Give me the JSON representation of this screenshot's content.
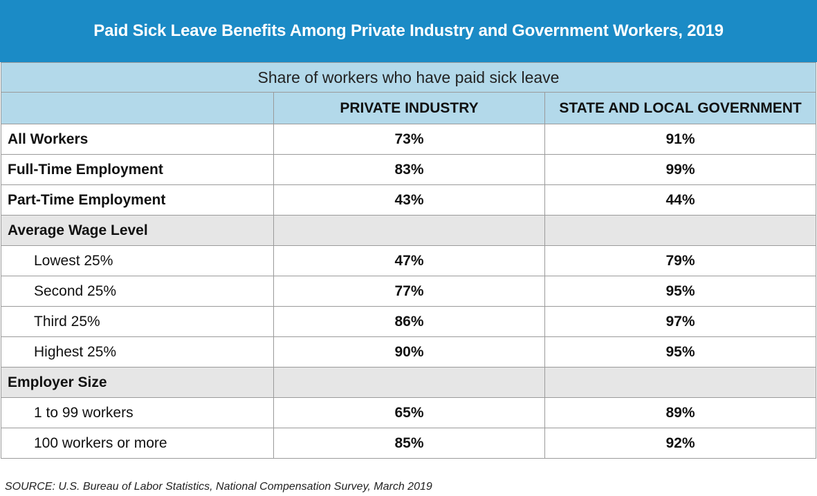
{
  "chart_data": {
    "type": "table",
    "title": "Paid Sick Leave Benefits Among Private Industry and Government Workers, 2019",
    "subtitle": "Share of workers who have paid sick leave",
    "columns": [
      "PRIVATE INDUSTRY",
      "STATE AND LOCAL GOVERNMENT"
    ],
    "rows": [
      {
        "label": "All Workers",
        "kind": "main",
        "values": [
          "73%",
          "91%"
        ]
      },
      {
        "label": "Full-Time Employment",
        "kind": "main",
        "values": [
          "83%",
          "99%"
        ]
      },
      {
        "label": "Part-Time Employment",
        "kind": "main",
        "values": [
          "43%",
          "44%"
        ]
      },
      {
        "label": "Average Wage Level",
        "kind": "section",
        "values": [
          "",
          ""
        ]
      },
      {
        "label": "Lowest 25%",
        "kind": "sub",
        "values": [
          "47%",
          "79%"
        ]
      },
      {
        "label": "Second 25%",
        "kind": "sub",
        "values": [
          "77%",
          "95%"
        ]
      },
      {
        "label": "Third 25%",
        "kind": "sub",
        "values": [
          "86%",
          "97%"
        ]
      },
      {
        "label": "Highest 25%",
        "kind": "sub",
        "values": [
          "90%",
          "95%"
        ]
      },
      {
        "label": "Employer Size",
        "kind": "section",
        "values": [
          "",
          ""
        ]
      },
      {
        "label": "1 to 99 workers",
        "kind": "sub",
        "values": [
          "65%",
          "89%"
        ]
      },
      {
        "label": "100 workers or more",
        "kind": "sub",
        "values": [
          "85%",
          "92%"
        ]
      }
    ],
    "source": "SOURCE: U.S. Bureau of Labor Statistics, National Compensation Survey, March 2019"
  },
  "colors": {
    "header_blue": "#1b8bc6",
    "light_blue": "#b3d9ea",
    "section_gray": "#e6e6e6",
    "border": "#9a9a9a"
  }
}
